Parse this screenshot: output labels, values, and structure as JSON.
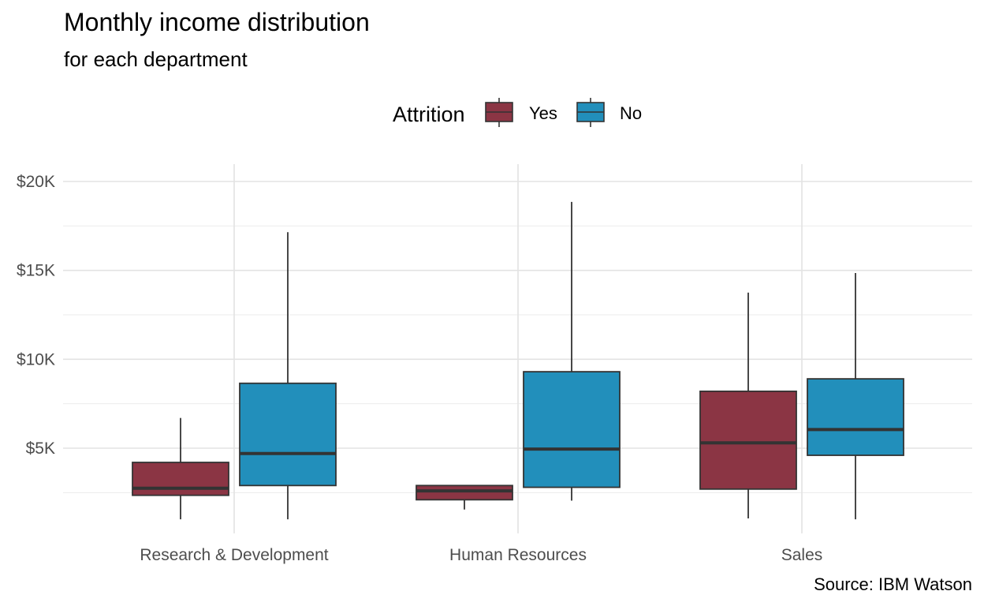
{
  "chart_data": {
    "type": "boxplot",
    "title": "Monthly income distribution",
    "subtitle": "for each department",
    "caption": "Source: IBM Watson",
    "xlabel": "",
    "ylabel": "",
    "categories": [
      "Research & Development",
      "Human Resources",
      "Sales"
    ],
    "y_ticks": [
      {
        "value": 20000,
        "label": "$20K"
      },
      {
        "value": 15000,
        "label": "$15K"
      },
      {
        "value": 10000,
        "label": "$10K"
      },
      {
        "value": 5000,
        "label": "$5K"
      }
    ],
    "ylim": [
      1000,
      21000
    ],
    "grid": true,
    "legend": {
      "title": "Attrition",
      "position": "top"
    },
    "series": [
      {
        "name": "Yes",
        "color": "#8B3544",
        "boxes": [
          {
            "min": 1000,
            "q1": 2350,
            "median": 2750,
            "q3": 4200,
            "max": 6700
          },
          {
            "min": 1550,
            "q1": 2100,
            "median": 2600,
            "q3": 2900,
            "max": 2900
          },
          {
            "min": 1050,
            "q1": 2700,
            "median": 5300,
            "q3": 8200,
            "max": 13750
          }
        ]
      },
      {
        "name": "No",
        "color": "#228FBB",
        "boxes": [
          {
            "min": 1000,
            "q1": 2900,
            "median": 4700,
            "q3": 8650,
            "max": 17150
          },
          {
            "min": 2050,
            "q1": 2800,
            "median": 4950,
            "q3": 9300,
            "max": 18850
          },
          {
            "min": 1000,
            "q1": 4600,
            "median": 6050,
            "q3": 8900,
            "max": 14850
          }
        ]
      }
    ]
  }
}
